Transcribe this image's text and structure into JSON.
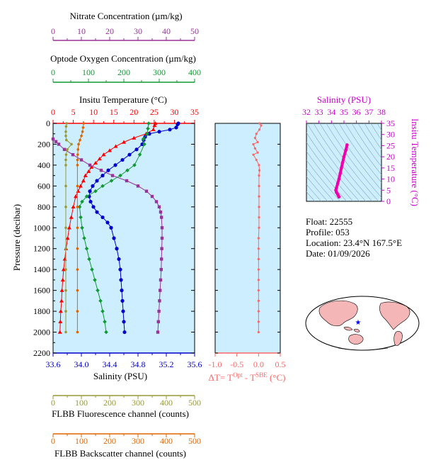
{
  "float_info": {
    "float_line": "Float:  22555",
    "profile_line": "Profile:  053",
    "location_line": "Location:  23.4°N  167.5°E",
    "date_line": "Date:  01/09/2026"
  },
  "colors": {
    "temperature": "#ff0000",
    "salinity": "#0000cc",
    "nitrate": "#993399",
    "oxygen": "#119933",
    "fluorescence": "#999933",
    "backscatter": "#dd6600",
    "delta_t": "#ff6666",
    "ts_curve": "#ee00aa",
    "panel_bg": "#cceeff"
  },
  "chart_data": [
    {
      "type": "line",
      "ylabel": "Pressure (decibar)",
      "ylim": [
        2200,
        0
      ],
      "y_ticks": [
        "0",
        "200",
        "400",
        "600",
        "800",
        "1000",
        "1200",
        "1400",
        "1600",
        "1800",
        "2000",
        "2200"
      ],
      "axes": {
        "nitrate": {
          "label": "Nitrate Concentration (µm/kg)",
          "range": [
            0,
            50
          ],
          "ticks": [
            "0",
            "10",
            "20",
            "30",
            "40",
            "50"
          ]
        },
        "oxygen": {
          "label": "Optode Oxygen Concentration (µm/kg)",
          "range": [
            0,
            400
          ],
          "ticks": [
            "0",
            "100",
            "200",
            "300",
            "400"
          ]
        },
        "temperature": {
          "label": "Insitu Temperature (°C)",
          "range": [
            0,
            35
          ],
          "ticks": [
            "0",
            "5",
            "10",
            "15",
            "20",
            "25",
            "30",
            "35"
          ]
        },
        "salinity": {
          "label": "Salinity (PSU)",
          "range": [
            33.6,
            35.6
          ],
          "ticks": [
            "33.6",
            "34.0",
            "34.4",
            "34.8",
            "35.2",
            "35.6"
          ]
        },
        "fluorescence": {
          "label": "FLBB Fluorescence channel (counts)",
          "range": [
            0,
            500
          ],
          "ticks": [
            "0",
            "100",
            "200",
            "300",
            "400",
            "500"
          ]
        },
        "backscatter": {
          "label": "FLBB Backscatter channel (counts)",
          "range": [
            0,
            500
          ],
          "ticks": [
            "0",
            "100",
            "200",
            "300",
            "400",
            "500"
          ]
        }
      },
      "series": [
        {
          "key": "temperature",
          "axis": "temperature",
          "marker": "triangle",
          "points": [
            [
              25.3,
              0
            ],
            [
              25.1,
              20
            ],
            [
              24.8,
              60
            ],
            [
              23.0,
              100
            ],
            [
              20.0,
              140
            ],
            [
              17.5,
              180
            ],
            [
              15.5,
              220
            ],
            [
              14.0,
              260
            ],
            [
              12.5,
              300
            ],
            [
              11.5,
              340
            ],
            [
              10.5,
              380
            ],
            [
              9.5,
              420
            ],
            [
              8.8,
              460
            ],
            [
              8.0,
              500
            ],
            [
              7.5,
              550
            ],
            [
              6.8,
              600
            ],
            [
              6.2,
              650
            ],
            [
              5.6,
              700
            ],
            [
              5.0,
              800
            ],
            [
              4.5,
              900
            ],
            [
              4.0,
              1000
            ],
            [
              3.6,
              1100
            ],
            [
              3.2,
              1200
            ],
            [
              2.9,
              1300
            ],
            [
              2.6,
              1400
            ],
            [
              2.4,
              1500
            ],
            [
              2.2,
              1600
            ],
            [
              2.1,
              1700
            ],
            [
              1.9,
              1800
            ],
            [
              1.8,
              1900
            ],
            [
              1.7,
              2000
            ]
          ]
        },
        {
          "key": "salinity",
          "axis": "salinity",
          "marker": "circle",
          "points": [
            [
              35.37,
              0
            ],
            [
              35.36,
              10
            ],
            [
              35.34,
              40
            ],
            [
              35.25,
              60
            ],
            [
              35.1,
              80
            ],
            [
              34.96,
              100
            ],
            [
              34.9,
              130
            ],
            [
              34.88,
              160
            ],
            [
              34.86,
              200
            ],
            [
              34.78,
              250
            ],
            [
              34.68,
              300
            ],
            [
              34.58,
              350
            ],
            [
              34.48,
              400
            ],
            [
              34.38,
              450
            ],
            [
              34.3,
              500
            ],
            [
              34.22,
              550
            ],
            [
              34.16,
              600
            ],
            [
              34.12,
              650
            ],
            [
              34.11,
              700
            ],
            [
              34.13,
              750
            ],
            [
              34.17,
              800
            ],
            [
              34.22,
              850
            ],
            [
              34.3,
              900
            ],
            [
              34.37,
              950
            ],
            [
              34.42,
              1000
            ],
            [
              34.46,
              1100
            ],
            [
              34.5,
              1200
            ],
            [
              34.53,
              1300
            ],
            [
              34.55,
              1400
            ],
            [
              34.56,
              1500
            ],
            [
              34.57,
              1600
            ],
            [
              34.58,
              1700
            ],
            [
              34.59,
              1800
            ],
            [
              34.6,
              1900
            ],
            [
              34.61,
              2000
            ]
          ]
        },
        {
          "key": "nitrate",
          "axis": "nitrate",
          "marker": "square",
          "points": [
            [
              0,
              150
            ],
            [
              1,
              175
            ],
            [
              2,
              200
            ],
            [
              4,
              250
            ],
            [
              7,
              300
            ],
            [
              10,
              350
            ],
            [
              13,
              400
            ],
            [
              17,
              450
            ],
            [
              21,
              500
            ],
            [
              26,
              550
            ],
            [
              30,
              600
            ],
            [
              33,
              650
            ],
            [
              35,
              700
            ],
            [
              36.5,
              750
            ],
            [
              37.5,
              800
            ],
            [
              38,
              850
            ],
            [
              38.3,
              900
            ],
            [
              38.5,
              1000
            ],
            [
              38.5,
              1100
            ],
            [
              38.4,
              1200
            ],
            [
              38.3,
              1300
            ],
            [
              38.2,
              1400
            ],
            [
              38,
              1500
            ],
            [
              37.8,
              1600
            ],
            [
              37.6,
              1700
            ],
            [
              37.4,
              1800
            ],
            [
              37.2,
              1900
            ],
            [
              37,
              2000
            ]
          ]
        },
        {
          "key": "oxygen",
          "axis": "oxygen",
          "marker": "diamond",
          "points": [
            [
              270,
              0
            ],
            [
              268,
              50
            ],
            [
              266,
              100
            ],
            [
              255,
              150
            ],
            [
              258,
              200
            ],
            [
              245,
              300
            ],
            [
              230,
              400
            ],
            [
              210,
              450
            ],
            [
              190,
              500
            ],
            [
              165,
              550
            ],
            [
              140,
              600
            ],
            [
              120,
              650
            ],
            [
              95,
              700
            ],
            [
              82,
              750
            ],
            [
              75,
              800
            ],
            [
              78,
              900
            ],
            [
              82,
              1000
            ],
            [
              88,
              1100
            ],
            [
              95,
              1200
            ],
            [
              102,
              1300
            ],
            [
              110,
              1400
            ],
            [
              118,
              1500
            ],
            [
              126,
              1600
            ],
            [
              134,
              1700
            ],
            [
              140,
              1800
            ],
            [
              146,
              1900
            ],
            [
              150,
              2000
            ]
          ]
        },
        {
          "key": "fluorescence",
          "axis": "fluorescence",
          "marker": "dot",
          "points": [
            [
              48,
              0
            ],
            [
              46,
              30
            ],
            [
              45,
              80
            ],
            [
              45,
              120
            ],
            [
              47,
              160
            ],
            [
              65,
              200
            ],
            [
              50,
              250
            ],
            [
              46,
              300
            ],
            [
              45,
              350
            ],
            [
              45,
              400
            ],
            [
              45,
              600
            ],
            [
              45,
              800
            ],
            [
              45,
              1000
            ],
            [
              45,
              1200
            ],
            [
              45,
              1400
            ],
            [
              45,
              1600
            ],
            [
              45,
              1800
            ],
            [
              45,
              2000
            ]
          ]
        },
        {
          "key": "backscatter",
          "axis": "backscatter",
          "marker": "dot",
          "points": [
            [
              108,
              0
            ],
            [
              106,
              40
            ],
            [
              104,
              80
            ],
            [
              100,
              120
            ],
            [
              95,
              160
            ],
            [
              90,
              200
            ],
            [
              88,
              250
            ],
            [
              87,
              300
            ],
            [
              86,
              350
            ],
            [
              86,
              400
            ],
            [
              86,
              600
            ],
            [
              86,
              800
            ],
            [
              86,
              1000
            ],
            [
              86,
              1200
            ],
            [
              86,
              1400
            ],
            [
              86,
              1600
            ],
            [
              86,
              1800
            ],
            [
              86,
              2000
            ]
          ]
        }
      ]
    },
    {
      "type": "line",
      "xlabel": "ΔT= T",
      "xlabel_sup1": "Opt",
      "xlabel_mid": " - T",
      "xlabel_sup2": "SBE",
      "xlabel_end": " (°C)",
      "xlim": [
        -1.0,
        0.5
      ],
      "x_ticks": [
        "-1.0",
        "-0.5",
        "0.0",
        "0.5"
      ],
      "ylim": [
        2200,
        0
      ],
      "series": [
        {
          "name": "delta_t",
          "points": [
            [
              0.02,
              0
            ],
            [
              0.06,
              20
            ],
            [
              0.02,
              60
            ],
            [
              -0.05,
              100
            ],
            [
              -0.08,
              140
            ],
            [
              -0.02,
              180
            ],
            [
              -0.12,
              200
            ],
            [
              -0.08,
              240
            ],
            [
              -0.02,
              280
            ],
            [
              -0.12,
              300
            ],
            [
              -0.05,
              350
            ],
            [
              0.01,
              400
            ],
            [
              0.02,
              450
            ],
            [
              0.01,
              500
            ],
            [
              0.01,
              600
            ],
            [
              0.01,
              700
            ],
            [
              0.01,
              800
            ],
            [
              0.01,
              900
            ],
            [
              0.01,
              1000
            ],
            [
              0.0,
              1100
            ],
            [
              0.0,
              1200
            ],
            [
              0.0,
              1300
            ],
            [
              0.0,
              1400
            ],
            [
              0.0,
              1500
            ],
            [
              0.0,
              1600
            ],
            [
              0.0,
              1700
            ],
            [
              0.0,
              1800
            ],
            [
              0.0,
              1900
            ],
            [
              0.0,
              2000
            ]
          ]
        }
      ]
    },
    {
      "type": "scatter",
      "xlabel": "Salinity (PSU)",
      "ylabel": "Insitu Temperature (°C)",
      "xlim": [
        32,
        38
      ],
      "ylim": [
        0,
        35
      ],
      "x_ticks": [
        "32",
        "33",
        "34",
        "35",
        "36",
        "37",
        "38"
      ],
      "y_ticks": [
        "0",
        "5",
        "10",
        "15",
        "20",
        "25",
        "30",
        "35"
      ],
      "series": [
        {
          "name": "ts",
          "points": [
            [
              35.25,
              25.3
            ],
            [
              35.15,
              23
            ],
            [
              35.0,
              20
            ],
            [
              34.9,
              17.5
            ],
            [
              34.8,
              15
            ],
            [
              34.7,
              12.5
            ],
            [
              34.6,
              10
            ],
            [
              34.5,
              8
            ],
            [
              34.4,
              6
            ],
            [
              34.35,
              5
            ],
            [
              34.4,
              4
            ],
            [
              34.5,
              3.2
            ],
            [
              34.55,
              2.6
            ],
            [
              34.6,
              2
            ]
          ]
        }
      ]
    }
  ]
}
